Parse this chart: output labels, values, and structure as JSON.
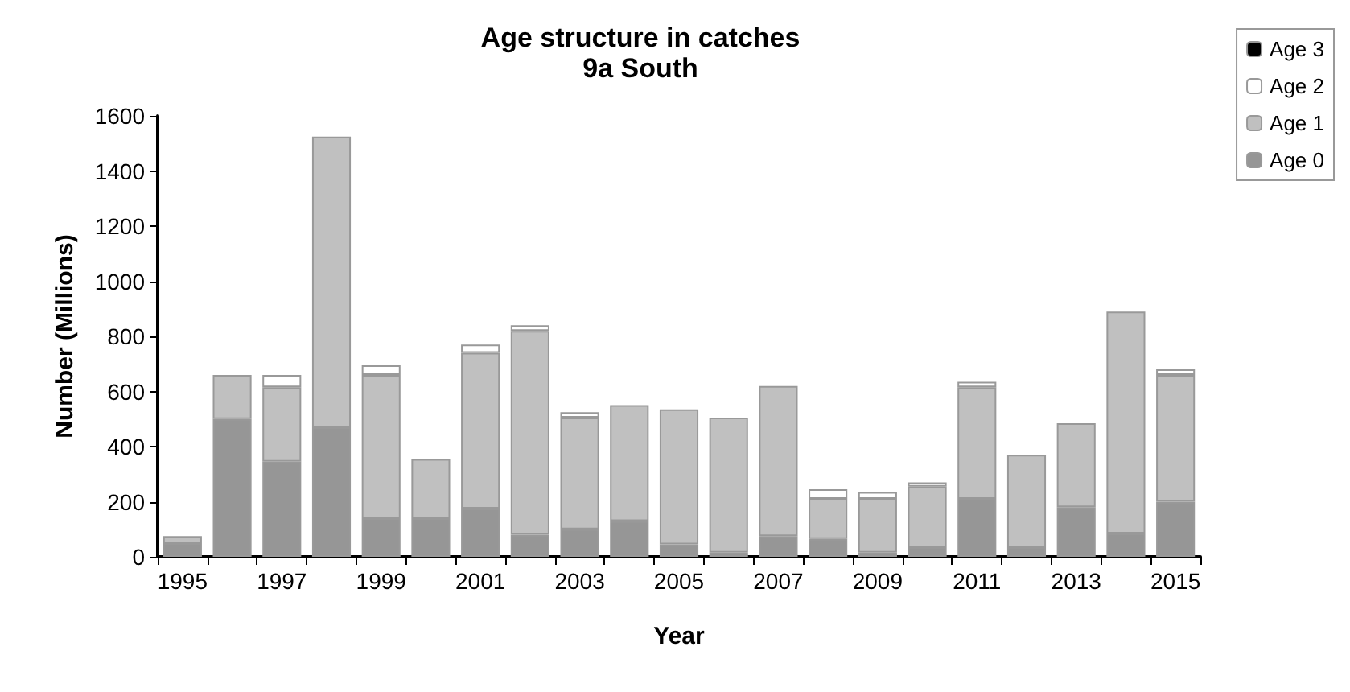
{
  "chart_data": {
    "type": "bar",
    "stacked": true,
    "title": "Age structure in catches",
    "subtitle": "9a South",
    "xlabel": "Year",
    "ylabel": "Number (Millions)",
    "categories": [
      "1995",
      null,
      "1997",
      null,
      "1999",
      null,
      "2001",
      null,
      "2003",
      null,
      "2005",
      null,
      "2007",
      null,
      "2009",
      null,
      "2011",
      null,
      "2013",
      null,
      "2015"
    ],
    "series": [
      {
        "name": "Age 0",
        "color": "#969696",
        "values": [
          50,
          500,
          345,
          470,
          140,
          140,
          175,
          80,
          100,
          130,
          45,
          15,
          75,
          65,
          15,
          35,
          210,
          35,
          180,
          85,
          200
        ]
      },
      {
        "name": "Age 1",
        "color": "#c0c0c0",
        "values": [
          25,
          160,
          270,
          1055,
          520,
          215,
          565,
          740,
          405,
          420,
          490,
          490,
          545,
          145,
          195,
          220,
          405,
          335,
          305,
          805,
          460
        ]
      },
      {
        "name": "Age 2",
        "color": "#ffffff",
        "values": [
          null,
          null,
          45,
          null,
          35,
          null,
          30,
          20,
          20,
          null,
          null,
          null,
          null,
          35,
          25,
          15,
          20,
          null,
          null,
          null,
          20
        ]
      },
      {
        "name": "Age 3",
        "color": "#000000",
        "values": [
          0,
          0,
          0,
          0,
          0,
          0,
          0,
          0,
          0,
          0,
          0,
          0,
          0,
          0,
          0,
          0,
          0,
          0,
          0,
          0,
          0
        ]
      }
    ],
    "ylim": [
      0,
      1600
    ],
    "yticks": [
      0,
      200,
      400,
      600,
      800,
      1000,
      1200,
      1400,
      1600
    ],
    "grid": false,
    "legend": "right"
  }
}
